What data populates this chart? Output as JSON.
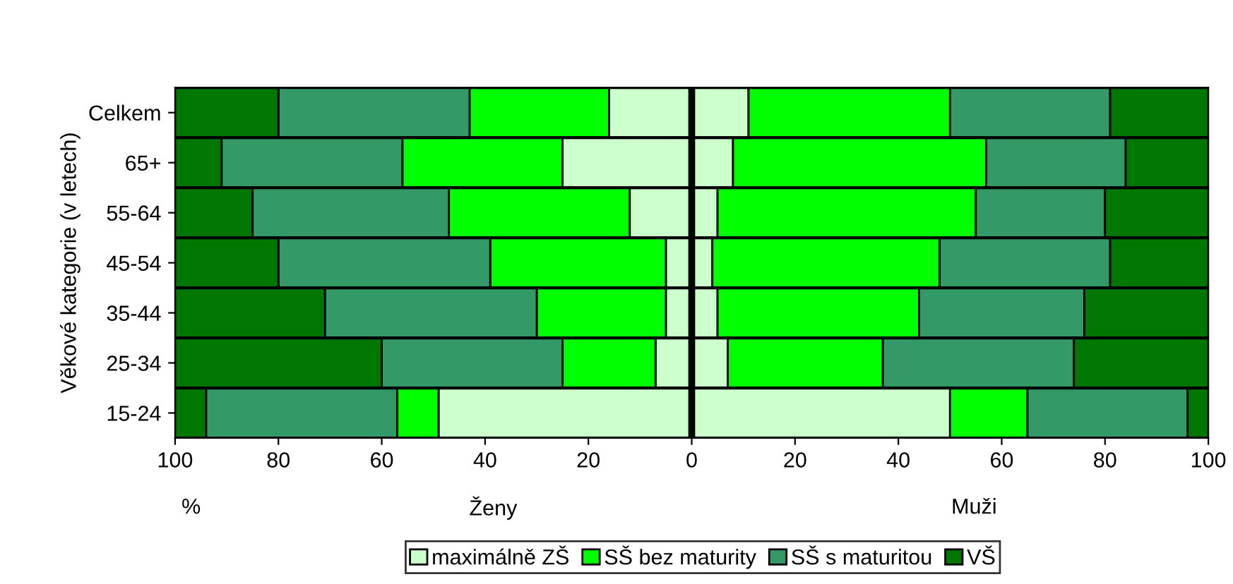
{
  "chart_data": {
    "type": "bar",
    "orientation": "horizontal",
    "stacked": true,
    "ylabel": "Věkové kategorie (v letech)",
    "annotations": [
      "%",
      "Ženy",
      "Muži"
    ],
    "categories": [
      "Celkem",
      "65+",
      "55-64",
      "45-54",
      "35-44",
      "25-34",
      "15-24"
    ],
    "series": [
      {
        "color": "#ccffcc",
        "values": [
          -16,
          -25,
          -12,
          -5,
          -5,
          -7,
          -49
        ]
      },
      {
        "color": "#00ff00",
        "values": [
          -27,
          -31,
          -35,
          -34,
          -25,
          -18,
          -8
        ]
      },
      {
        "color": "#339966",
        "values": [
          -37,
          -35,
          -38,
          -41,
          -41,
          -35,
          -37
        ]
      },
      {
        "color": "#007700",
        "values": [
          -20,
          -9,
          -15,
          -20,
          -29,
          -40,
          -6
        ]
      },
      {
        "name": "maximálně ZŠ",
        "color": "#ccffcc",
        "values": [
          11,
          8,
          5,
          4,
          5,
          7,
          50
        ]
      },
      {
        "name": "SŠ bez maturity",
        "color": "#00ff00",
        "values": [
          39,
          49,
          50,
          44,
          39,
          30,
          15
        ]
      },
      {
        "name": "SŠ s maturitou",
        "color": "#339966",
        "values": [
          31,
          27,
          25,
          33,
          32,
          37,
          31
        ]
      },
      {
        "name": "VŠ",
        "color": "#007700",
        "values": [
          19,
          16,
          20,
          19,
          24,
          26,
          4
        ]
      }
    ],
    "xlim": [
      -100,
      100
    ],
    "xticks": [
      {
        "value": -100,
        "label": "100"
      },
      {
        "value": -80,
        "label": "80"
      },
      {
        "value": -60,
        "label": "60"
      },
      {
        "value": -40,
        "label": "40"
      },
      {
        "value": -20,
        "label": "20"
      },
      0,
      20,
      40,
      60,
      80,
      100
    ],
    "ref_lines": [
      {
        "axis": "x",
        "value": 0,
        "color": "#000000"
      }
    ],
    "legend": "bottom"
  }
}
